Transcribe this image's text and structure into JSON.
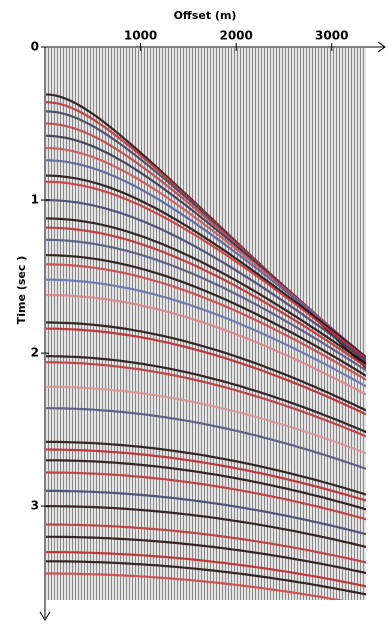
{
  "chart_data": {
    "type": "seismic",
    "title": "Offset (m)",
    "y_label": "Time (sec )",
    "xlim": [
      0,
      3400
    ],
    "xticks": [
      1000,
      2000,
      3000
    ],
    "ylim": [
      0,
      3.6
    ],
    "yticks": [
      0,
      1,
      2,
      3
    ],
    "events": [
      {
        "t0": 0.31,
        "velocity": 1620,
        "color": "#1a0a0a"
      },
      {
        "t0": 0.36,
        "velocity": 1640,
        "color": "#c03030"
      },
      {
        "t0": 0.42,
        "velocity": 1660,
        "color": "#404060"
      },
      {
        "t0": 0.5,
        "velocity": 1690,
        "color": "#c04040"
      },
      {
        "t0": 0.58,
        "velocity": 1720,
        "color": "#303050"
      },
      {
        "t0": 0.66,
        "velocity": 1750,
        "color": "#d05050"
      },
      {
        "t0": 0.74,
        "velocity": 1780,
        "color": "#5060a0"
      },
      {
        "t0": 0.84,
        "velocity": 1820,
        "color": "#1a0a0a"
      },
      {
        "t0": 0.88,
        "velocity": 1830,
        "color": "#d03030"
      },
      {
        "t0": 1.0,
        "velocity": 1880,
        "color": "#404070"
      },
      {
        "t0": 1.12,
        "velocity": 1930,
        "color": "#1a0a0a"
      },
      {
        "t0": 1.18,
        "velocity": 1950,
        "color": "#c02828"
      },
      {
        "t0": 1.26,
        "velocity": 1980,
        "color": "#505080"
      },
      {
        "t0": 1.36,
        "velocity": 2020,
        "color": "#1a0a0a"
      },
      {
        "t0": 1.42,
        "velocity": 2040,
        "color": "#d04040"
      },
      {
        "t0": 1.52,
        "velocity": 2080,
        "color": "#6070b0"
      },
      {
        "t0": 1.62,
        "velocity": 2110,
        "color": "#e08080"
      },
      {
        "t0": 1.8,
        "velocity": 2170,
        "color": "#1a0a0a"
      },
      {
        "t0": 1.84,
        "velocity": 2180,
        "color": "#c02020"
      },
      {
        "t0": 2.02,
        "velocity": 2240,
        "color": "#1a0a0a"
      },
      {
        "t0": 2.06,
        "velocity": 2250,
        "color": "#c03030"
      },
      {
        "t0": 2.22,
        "velocity": 2310,
        "color": "#e09090"
      },
      {
        "t0": 2.36,
        "velocity": 2360,
        "color": "#505080"
      },
      {
        "t0": 2.58,
        "velocity": 2440,
        "color": "#1a0a0a"
      },
      {
        "t0": 2.63,
        "velocity": 2460,
        "color": "#c02020"
      },
      {
        "t0": 2.7,
        "velocity": 2480,
        "color": "#1a0a0a"
      },
      {
        "t0": 2.78,
        "velocity": 2510,
        "color": "#c03030"
      },
      {
        "t0": 2.9,
        "velocity": 2560,
        "color": "#404070"
      },
      {
        "t0": 3.0,
        "velocity": 2600,
        "color": "#1a0a0a"
      },
      {
        "t0": 3.12,
        "velocity": 2650,
        "color": "#c03030"
      },
      {
        "t0": 3.2,
        "velocity": 2680,
        "color": "#1a0a0a"
      },
      {
        "t0": 3.3,
        "velocity": 2720,
        "color": "#c02020"
      },
      {
        "t0": 3.36,
        "velocity": 2740,
        "color": "#1a0a0a"
      },
      {
        "t0": 3.44,
        "velocity": 2780,
        "color": "#d04040"
      }
    ]
  }
}
